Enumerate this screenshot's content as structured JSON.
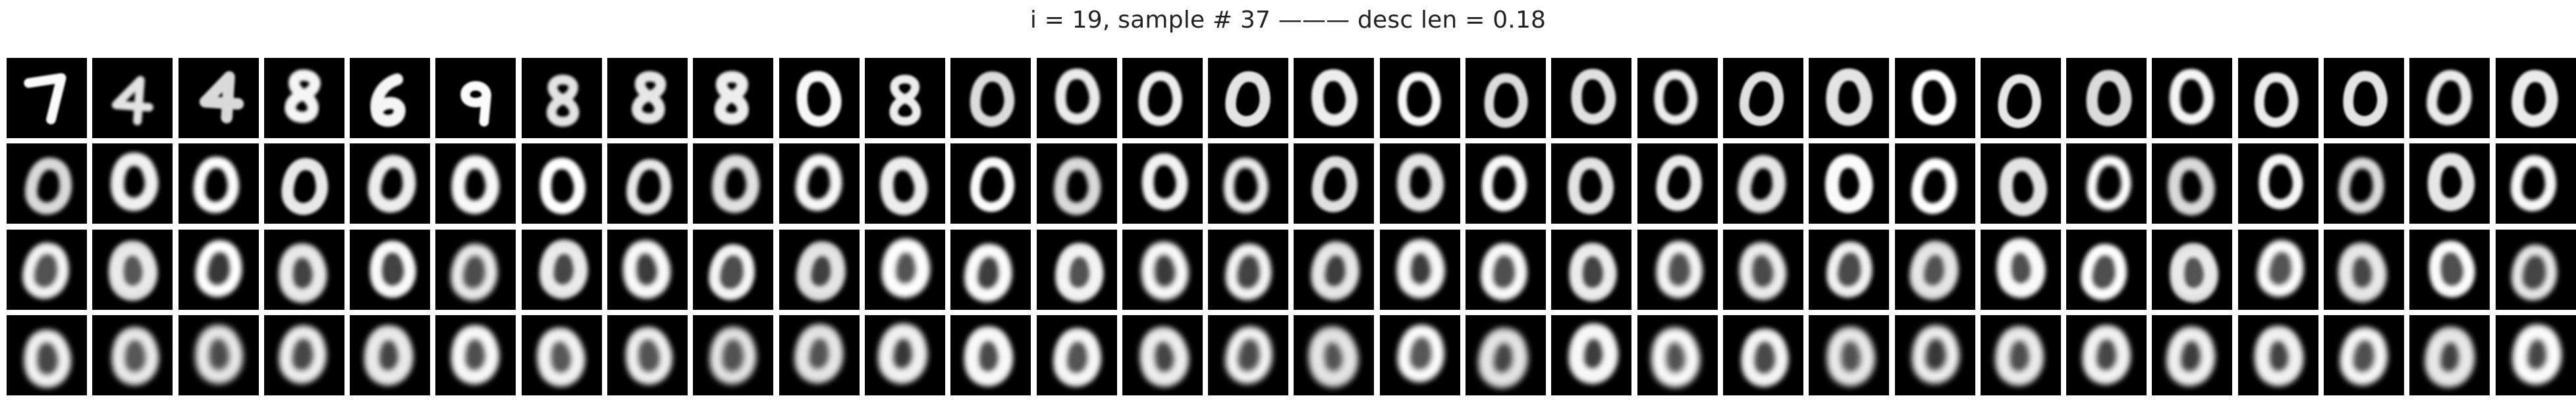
{
  "figure": {
    "title": "i = 19, sample # 37 ——— desc len = 0.18"
  },
  "grid": {
    "rows": 4,
    "cols": 30,
    "first_row_digits": [
      "7",
      "4",
      "4",
      "8",
      "6",
      "9",
      "8",
      "8",
      "8",
      "0",
      "8",
      "0",
      "0",
      "0",
      "0",
      "0",
      "0",
      "0",
      "0",
      "0",
      "0",
      "0",
      "0",
      "0",
      "0",
      "0",
      "0",
      "0",
      "0",
      "0"
    ],
    "colors": {
      "background": "#000000",
      "stroke": "#ffffff",
      "page": "#ffffff"
    }
  }
}
